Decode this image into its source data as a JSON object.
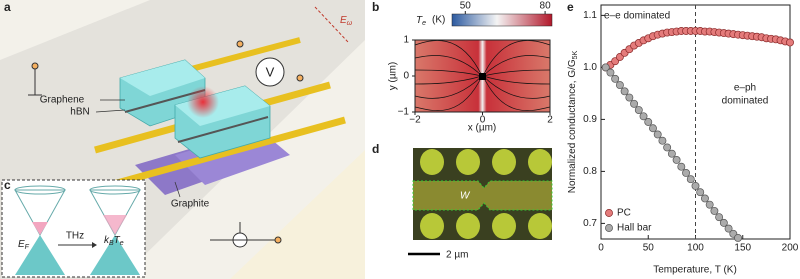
{
  "panels": {
    "a": {
      "letter": "a",
      "labels": {
        "graphene": "Graphene",
        "hbn": "hBN",
        "graphite": "Graphite",
        "voltmeter": "V",
        "field": {
          "main": "E",
          "sub": "ω"
        }
      }
    },
    "b": {
      "letter": "b",
      "colorbar": {
        "symbol": {
          "main": "T",
          "sub": "e"
        },
        "unit": "(K)",
        "lim": [
          45,
          82.6
        ],
        "ticks": [
          50,
          80
        ]
      },
      "xlim": [
        -2,
        2
      ],
      "ylim": [
        -1,
        1
      ],
      "xticks": [
        {
          "value": -2,
          "label": "−2"
        },
        0,
        2
      ],
      "yticks": [
        1,
        0,
        {
          "value": -1,
          "label": "−1"
        }
      ],
      "xlabel": "x (µm)",
      "ylabel": "y (µm)"
    },
    "c": {
      "letter": "c",
      "labels": {
        "fermi": {
          "main": "E",
          "sub": "F"
        },
        "thz": "THz",
        "thermal": {
          "k": "k",
          "k_sub": "B",
          "t": "T",
          "t_sub": "e"
        }
      }
    },
    "d": {
      "letter": "d",
      "labels": {
        "width": "W",
        "scale": "2 µm"
      }
    }
  },
  "chart_data": {
    "type": "scatter",
    "letter": "e",
    "x": [
      5,
      10,
      15,
      20,
      25,
      30,
      35,
      40,
      45,
      50,
      55,
      60,
      65,
      70,
      75,
      80,
      85,
      90,
      95,
      100,
      105,
      110,
      115,
      120,
      125,
      130,
      135,
      140,
      145,
      150,
      155,
      160,
      165,
      170,
      175,
      180,
      185,
      190,
      195,
      200
    ],
    "series": [
      {
        "name": "PC",
        "color": "#e47b7b",
        "edgecolor": "#8a2a2a",
        "values": [
          1.0,
          1.005,
          1.012,
          1.02,
          1.028,
          1.035,
          1.042,
          1.047,
          1.052,
          1.056,
          1.06,
          1.063,
          1.065,
          1.067,
          1.068,
          1.069,
          1.07,
          1.07,
          1.07,
          1.07,
          1.07,
          1.069,
          1.069,
          1.068,
          1.067,
          1.066,
          1.065,
          1.064,
          1.063,
          1.062,
          1.061,
          1.06,
          1.059,
          1.058,
          1.056,
          1.055,
          1.054,
          1.052,
          1.05,
          1.048
        ]
      },
      {
        "name": "Hall bar",
        "color": "#ababab",
        "edgecolor": "#555555",
        "values": [
          1.0,
          0.99,
          0.978,
          0.966,
          0.954,
          0.942,
          0.93,
          0.918,
          0.906,
          0.895,
          0.883,
          0.871,
          0.859,
          0.846,
          0.834,
          0.822,
          0.809,
          0.797,
          0.785,
          0.772,
          0.76,
          0.748,
          0.736,
          0.724,
          0.712,
          0.701,
          0.69,
          0.68,
          0.672,
          null,
          null,
          null,
          null,
          null,
          null,
          null,
          null,
          null,
          null,
          null
        ]
      }
    ],
    "xlim": [
      0,
      200
    ],
    "ylim": [
      0.67,
      1.12
    ],
    "xticks": [
      0,
      50,
      100,
      150,
      200
    ],
    "yticks": [
      0.7,
      0.8,
      0.9,
      {
        "value": 1,
        "label": "1.0"
      },
      1.1
    ],
    "xlabel": "Temperature, T (K)",
    "ylabel": {
      "main": "Normalized conductance, G/G",
      "sub": "5K"
    },
    "vline": 100,
    "annotations": [
      [
        "e–e dominated"
      ],
      [
        "e–ph",
        "dominated"
      ]
    ],
    "legend": "lower left"
  }
}
